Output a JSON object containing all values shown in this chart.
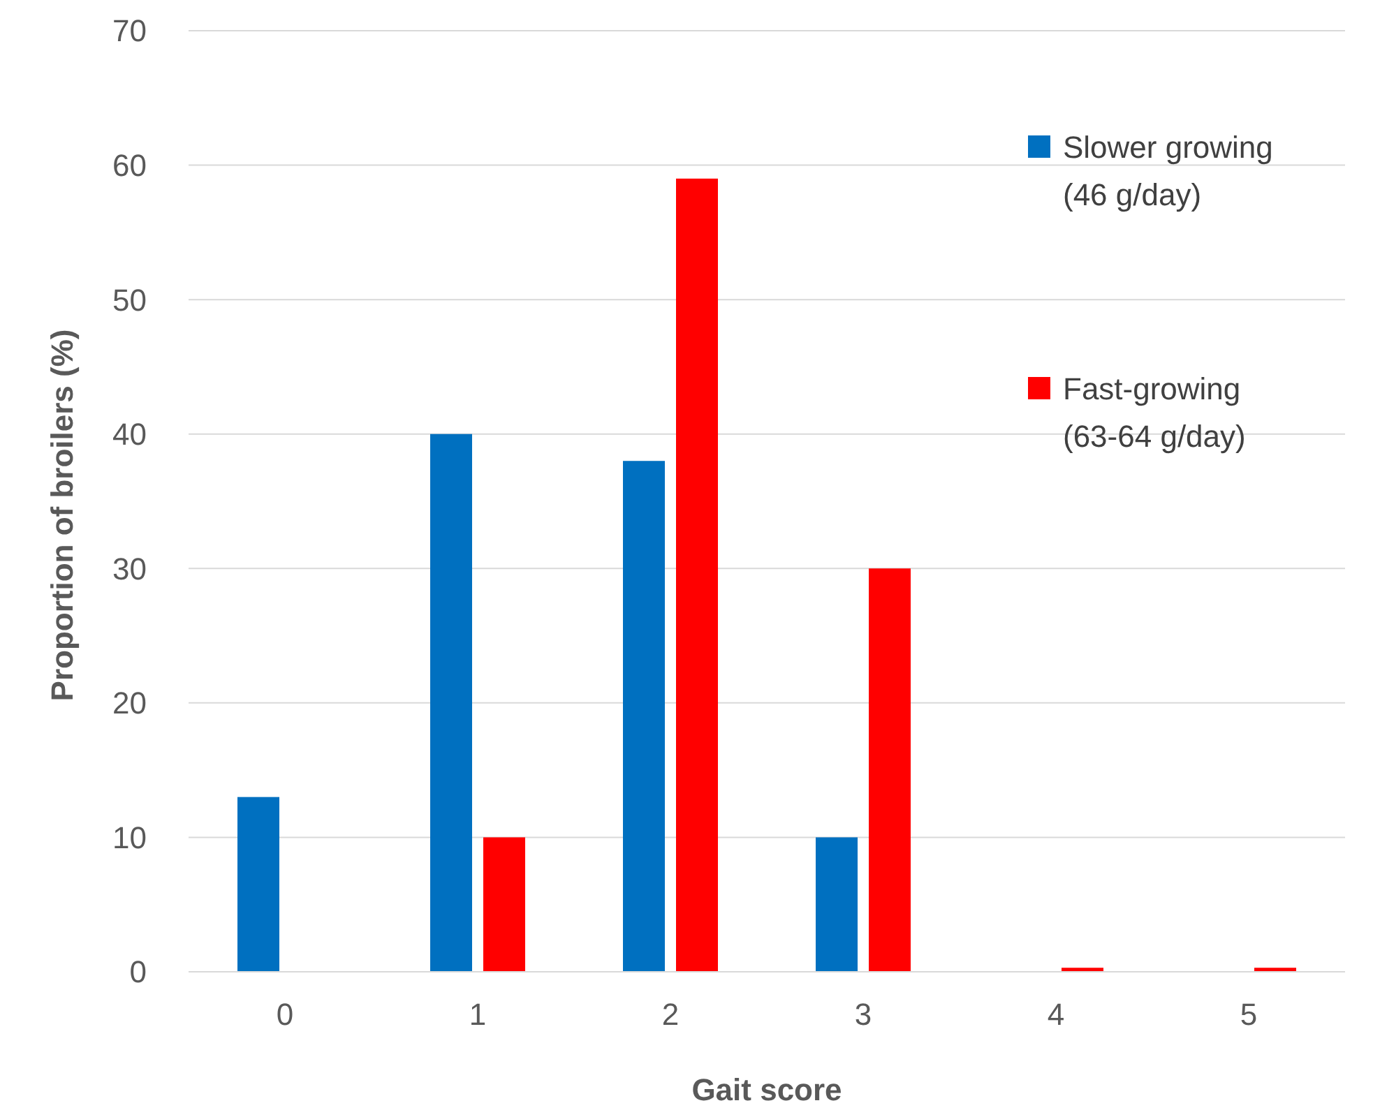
{
  "chart_data": {
    "type": "bar",
    "xlabel": "Gait score",
    "ylabel": "Proportion of broilers (%)",
    "categories": [
      "0",
      "1",
      "2",
      "3",
      "4",
      "5"
    ],
    "series": [
      {
        "name": "Slower growing (46 g/day)",
        "color": "#0070c0",
        "values": [
          13,
          40,
          38,
          10,
          0,
          0
        ]
      },
      {
        "name": "Fast-growing (63-64 g/day)",
        "color": "#ff0000",
        "values": [
          0,
          10,
          59,
          30,
          0.3,
          0.3
        ]
      }
    ],
    "ylim": [
      0,
      70
    ],
    "yticks": [
      0,
      10,
      20,
      30,
      40,
      50,
      60,
      70
    ],
    "grid": "y",
    "legend": "top right"
  }
}
